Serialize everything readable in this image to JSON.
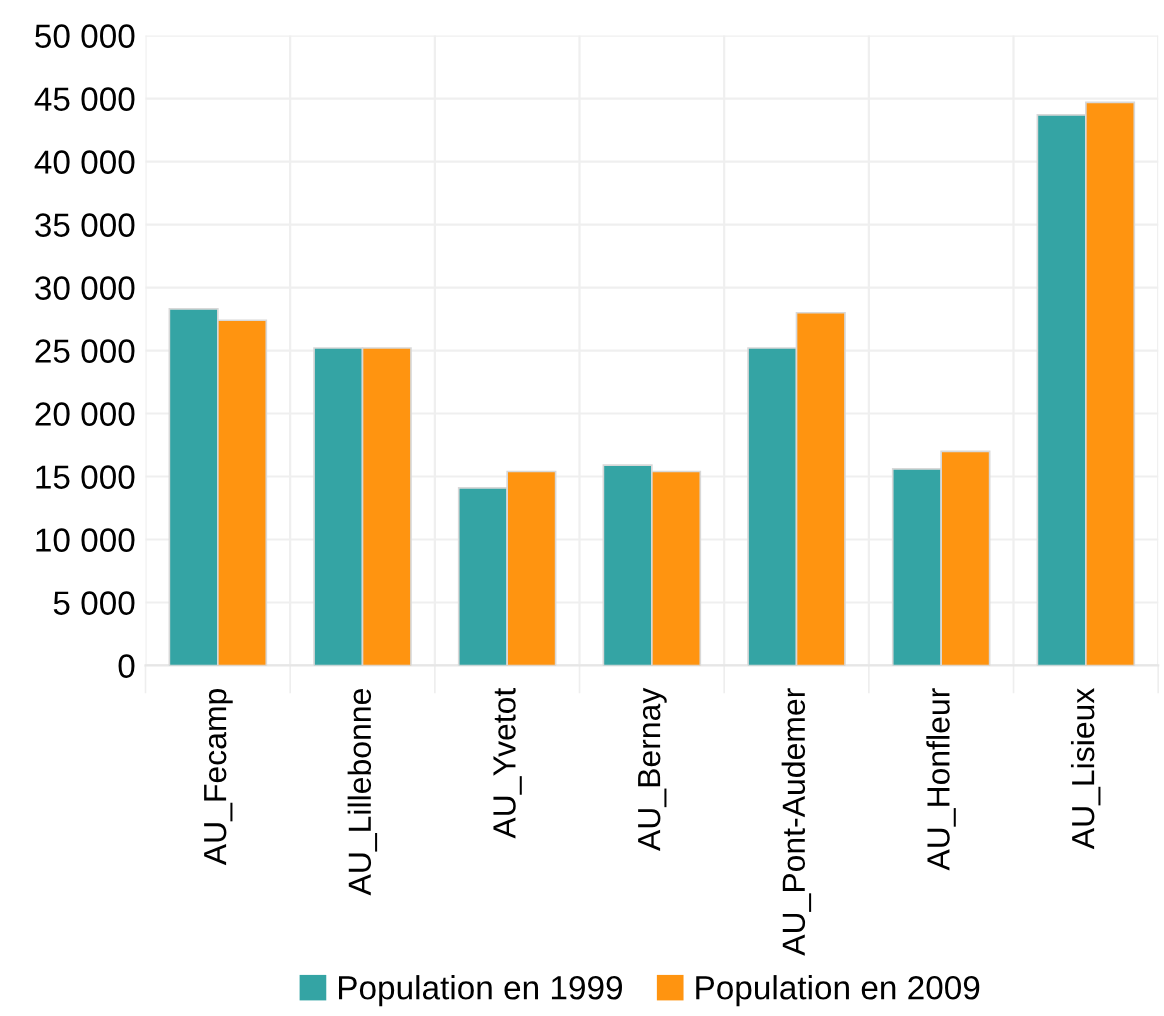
{
  "chart_data": {
    "type": "bar",
    "categories": [
      "AU_Fecamp",
      "AU_Lillebonne",
      "AU_Yvetot",
      "AU_Bernay",
      "AU_Pont-Audemer",
      "AU_Honfleur",
      "AU_Lisieux"
    ],
    "series": [
      {
        "name": "Population en 1999",
        "color": "#34a4a4",
        "values": [
          28300,
          25200,
          14100,
          15900,
          25200,
          15600,
          43700
        ]
      },
      {
        "name": "Population en 2009",
        "color": "#ff9410",
        "values": [
          27400,
          25200,
          15400,
          15400,
          28000,
          17000,
          44700
        ]
      }
    ],
    "ylim": [
      0,
      50000
    ],
    "yticks": [
      {
        "value": 0,
        "label": "0"
      },
      {
        "value": 5000,
        "label": "5 000"
      },
      {
        "value": 10000,
        "label": "10 000"
      },
      {
        "value": 15000,
        "label": "15 000"
      },
      {
        "value": 20000,
        "label": "20 000"
      },
      {
        "value": 25000,
        "label": "25 000"
      },
      {
        "value": 30000,
        "label": "30 000"
      },
      {
        "value": 35000,
        "label": "35 000"
      },
      {
        "value": 40000,
        "label": "40 000"
      },
      {
        "value": 45000,
        "label": "45 000"
      },
      {
        "value": 50000,
        "label": "50 000"
      }
    ],
    "grid": true,
    "legend": "bottom"
  }
}
